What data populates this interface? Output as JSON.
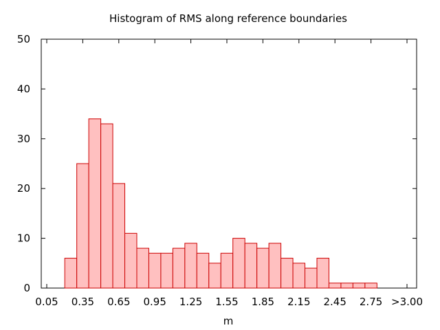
{
  "chart_data": {
    "type": "bar",
    "title": "Histogram of RMS along reference boundaries",
    "xlabel": "m",
    "ylabel": "",
    "ylim": [
      0,
      50
    ],
    "yticks": [
      0,
      10,
      20,
      30,
      40,
      50
    ],
    "xtick_labels": [
      "0.05",
      "0.35",
      "0.65",
      "0.95",
      "1.25",
      "1.55",
      "1.85",
      "2.15",
      "2.45",
      "2.75",
      ">3.00"
    ],
    "categories": [
      "0.25",
      "0.35",
      "0.45",
      "0.55",
      "0.65",
      "0.75",
      "0.85",
      "0.95",
      "1.05",
      "1.15",
      "1.25",
      "1.35",
      "1.45",
      "1.55",
      "1.65",
      "1.75",
      "1.85",
      "1.95",
      "2.05",
      "2.15",
      "2.25",
      "2.35",
      "2.45",
      "2.55",
      "2.65",
      "2.75"
    ],
    "values": [
      6,
      25,
      34,
      33,
      21,
      11,
      8,
      7,
      7,
      8,
      9,
      7,
      5,
      7,
      10,
      9,
      8,
      9,
      6,
      5,
      4,
      6,
      1,
      1,
      1,
      1
    ],
    "bar_fill": "#ffc0c0",
    "bar_stroke": "#cc0000",
    "grid": false,
    "legend": "none"
  }
}
